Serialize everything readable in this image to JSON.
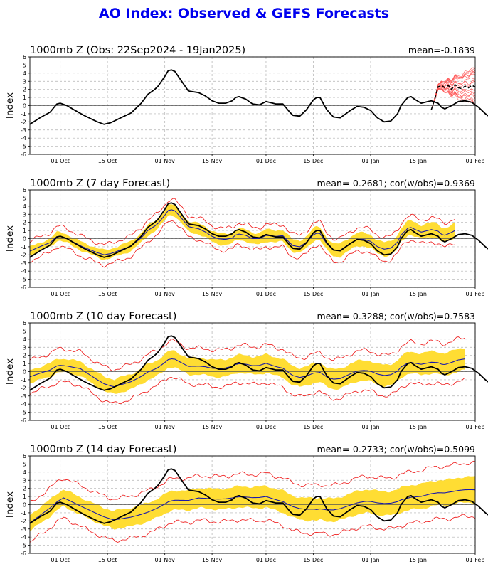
{
  "title": "AO Index: Observed & GEFS Forecasts",
  "colors": {
    "title": "#0000ee",
    "observed": "#000000",
    "ensemble_mean": "#1a1aaa",
    "spread_fill": "#ffdd33",
    "extremes": "#ee1111",
    "members": "#ff5555",
    "grid": "#b0b0b0"
  },
  "chart_data": [
    {
      "type": "line",
      "title": "1000mb Z (Obs: 22Sep2024 - 19Jan2025)",
      "stat": "mean=-0.1839",
      "ylabel": "Index",
      "ylim": [
        -6,
        6
      ],
      "yticks": [
        -6,
        -5,
        -4,
        -3,
        -2,
        -1,
        0,
        1,
        2,
        3,
        4,
        5,
        6
      ],
      "xlim": [
        "2024-09-22",
        "2025-02-01"
      ],
      "xticks": [
        {
          "date": "2024-10-01",
          "label": "01 Oct"
        },
        {
          "date": "2024-10-15",
          "label": "15 Oct"
        },
        {
          "date": "2024-11-01",
          "label": "01 Nov"
        },
        {
          "date": "2024-11-15",
          "label": "15 Nov"
        },
        {
          "date": "2024-12-01",
          "label": "01 Dec"
        },
        {
          "date": "2024-12-15",
          "label": "15 Dec"
        },
        {
          "date": "2025-01-01",
          "label": "01 Jan"
        },
        {
          "date": "2025-01-15",
          "label": "15 Jan"
        },
        {
          "date": "2025-02-01",
          "label": "01 Feb"
        }
      ],
      "grid": true,
      "kind": "observed",
      "gefs_start": "2025-01-19",
      "gefs_end": "2025-02-01",
      "gefs_mean": [
        [
          0,
          -0.5
        ],
        [
          1,
          0.8
        ],
        [
          2,
          2.3
        ],
        [
          3,
          2.5
        ],
        [
          4,
          2.2
        ],
        [
          5,
          2.5
        ],
        [
          6,
          2.0
        ],
        [
          7,
          2.6
        ],
        [
          8,
          2.2
        ],
        [
          9,
          2.1
        ],
        [
          10,
          2.4
        ],
        [
          11,
          2.2
        ],
        [
          12,
          2.5
        ],
        [
          13,
          2.3
        ]
      ]
    },
    {
      "type": "line",
      "title": "1000mb Z (7 day Forecast)",
      "stat": "mean=-0.2681; cor(w/obs)=0.9369",
      "ylabel": "Index",
      "ylim": [
        -6,
        6
      ],
      "yticks": [
        -6,
        -5,
        -4,
        -3,
        -2,
        -1,
        0,
        1,
        2,
        3,
        4,
        5,
        6
      ],
      "kind": "forecast",
      "forecast_end": "2025-01-26",
      "mean_offset": [
        [
          0,
          0.3
        ],
        [
          15,
          -0.1
        ],
        [
          30,
          -0.2
        ],
        [
          45,
          0.1
        ],
        [
          60,
          -0.4
        ],
        [
          75,
          0.2
        ],
        [
          90,
          -0.3
        ],
        [
          105,
          0.3
        ],
        [
          126,
          0.8
        ]
      ],
      "spread": [
        [
          0,
          0.5
        ],
        [
          126,
          0.9
        ]
      ],
      "extreme": [
        [
          0,
          1.2
        ],
        [
          126,
          1.5
        ]
      ]
    },
    {
      "type": "line",
      "title": "1000mb Z (10 day Forecast)",
      "stat": "mean=-0.3288; cor(w/obs)=0.7583",
      "ylabel": "Index",
      "ylim": [
        -6,
        6
      ],
      "yticks": [
        -6,
        -5,
        -4,
        -3,
        -2,
        -1,
        0,
        1,
        2,
        3,
        4,
        5,
        6
      ],
      "kind": "forecast",
      "forecast_end": "2025-01-29",
      "mean_offset": [
        [
          0,
          0.4
        ],
        [
          15,
          0.8
        ],
        [
          25,
          -1.0
        ],
        [
          40,
          -0.5
        ],
        [
          55,
          0.2
        ],
        [
          70,
          0.8
        ],
        [
          85,
          -0.6
        ],
        [
          100,
          0.3
        ],
        [
          112,
          0.6
        ],
        [
          129,
          1.3
        ]
      ],
      "spread": [
        [
          0,
          0.8
        ],
        [
          129,
          1.4
        ]
      ],
      "extreme": [
        [
          0,
          2.0
        ],
        [
          129,
          2.6
        ]
      ]
    },
    {
      "type": "line",
      "title": "1000mb Z (14 day Forecast)",
      "stat": "mean=-0.2733; cor(w/obs)=0.5099",
      "ylabel": "Index",
      "ylim": [
        -6,
        6
      ],
      "yticks": [
        -6,
        -5,
        -4,
        -3,
        -2,
        -1,
        0,
        1,
        2,
        3,
        4,
        5,
        6
      ],
      "kind": "forecast",
      "forecast_end": "2025-02-01",
      "mean_offset": [
        [
          0,
          -1.8
        ],
        [
          10,
          0.8
        ],
        [
          25,
          -1.5
        ],
        [
          35,
          -1.2
        ],
        [
          50,
          0.5
        ],
        [
          70,
          0.9
        ],
        [
          85,
          -0.8
        ],
        [
          100,
          0.5
        ],
        [
          112,
          0.6
        ],
        [
          122,
          1.5
        ],
        [
          132,
          1.8
        ]
      ],
      "spread": [
        [
          0,
          1.0
        ],
        [
          132,
          1.6
        ]
      ],
      "extreme": [
        [
          0,
          2.4
        ],
        [
          132,
          3.3
        ]
      ]
    }
  ],
  "observed_series": [
    [
      0,
      -2.3
    ],
    [
      3,
      -1.5
    ],
    [
      6,
      -0.8
    ],
    [
      8,
      0.2
    ],
    [
      9,
      0.3
    ],
    [
      11,
      0.0
    ],
    [
      13,
      -0.5
    ],
    [
      16,
      -1.2
    ],
    [
      20,
      -2.0
    ],
    [
      22,
      -2.3
    ],
    [
      24,
      -2.1
    ],
    [
      27,
      -1.5
    ],
    [
      30,
      -0.9
    ],
    [
      33,
      0.3
    ],
    [
      35,
      1.4
    ],
    [
      37,
      2.0
    ],
    [
      38,
      2.4
    ],
    [
      40,
      3.6
    ],
    [
      41,
      4.3
    ],
    [
      42,
      4.4
    ],
    [
      43,
      4.2
    ],
    [
      45,
      3.0
    ],
    [
      47,
      1.8
    ],
    [
      50,
      1.6
    ],
    [
      52,
      1.2
    ],
    [
      54,
      0.6
    ],
    [
      56,
      0.3
    ],
    [
      58,
      0.3
    ],
    [
      60,
      0.6
    ],
    [
      61,
      1.0
    ],
    [
      62,
      1.1
    ],
    [
      64,
      0.8
    ],
    [
      66,
      0.2
    ],
    [
      68,
      0.1
    ],
    [
      70,
      0.5
    ],
    [
      71,
      0.4
    ],
    [
      73,
      0.2
    ],
    [
      75,
      0.2
    ],
    [
      77,
      -0.8
    ],
    [
      78,
      -1.2
    ],
    [
      80,
      -1.3
    ],
    [
      82,
      -0.5
    ],
    [
      84,
      0.7
    ],
    [
      85,
      1.0
    ],
    [
      86,
      1.0
    ],
    [
      88,
      -0.5
    ],
    [
      90,
      -1.4
    ],
    [
      92,
      -1.5
    ],
    [
      95,
      -0.6
    ],
    [
      97,
      -0.1
    ],
    [
      99,
      -0.2
    ],
    [
      101,
      -0.6
    ],
    [
      103,
      -1.5
    ],
    [
      105,
      -2.0
    ],
    [
      107,
      -1.9
    ],
    [
      109,
      -1.0
    ],
    [
      110,
      0.0
    ],
    [
      112,
      1.0
    ],
    [
      113,
      1.1
    ],
    [
      114,
      0.8
    ],
    [
      116,
      0.3
    ],
    [
      118,
      0.5
    ],
    [
      119,
      0.6
    ],
    [
      121,
      0.3
    ],
    [
      122,
      -0.2
    ],
    [
      123,
      -0.4
    ],
    [
      125,
      0.0
    ],
    [
      127,
      0.5
    ],
    [
      129,
      0.6
    ],
    [
      131,
      0.4
    ],
    [
      133,
      -0.2
    ],
    [
      135,
      -1.0
    ],
    [
      137,
      -1.6
    ],
    [
      138,
      -2.3
    ],
    [
      140,
      -3.4
    ],
    [
      141,
      -3.6
    ],
    [
      142,
      -3.4
    ],
    [
      144,
      -2.5
    ],
    [
      146,
      -1.8
    ],
    [
      148,
      -1.4
    ],
    [
      150,
      -0.5
    ],
    [
      152,
      1.0
    ],
    [
      153,
      1.4
    ],
    [
      154,
      1.5
    ],
    [
      156,
      1.0
    ],
    [
      158,
      0.0
    ],
    [
      159,
      -0.4
    ],
    [
      161,
      -0.6
    ]
  ]
}
